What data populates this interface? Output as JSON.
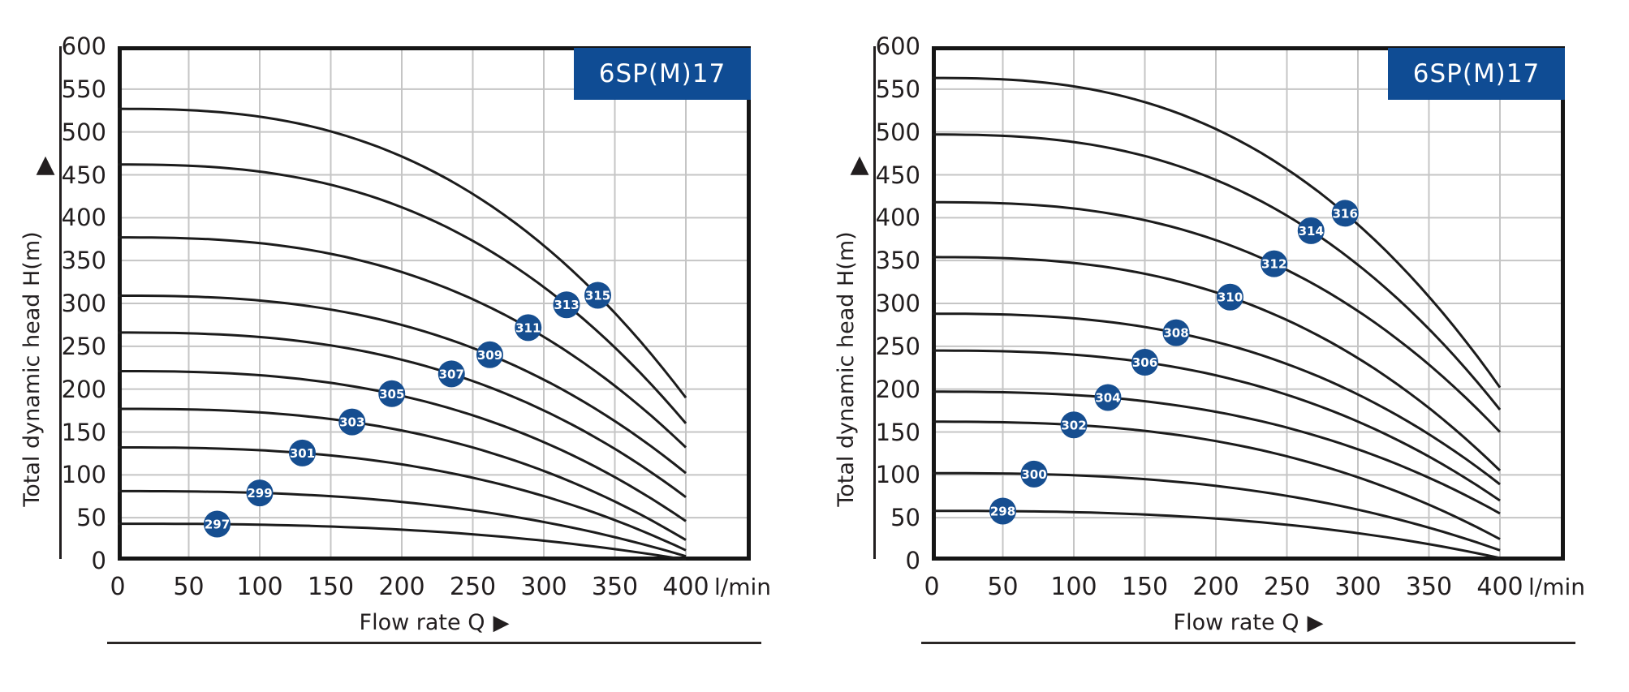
{
  "icons": {
    "up_arrow": "▲",
    "right_arrow": "▶"
  },
  "colors": {
    "background": "#ffffff",
    "bubble": "#164e90",
    "bubble_text": "#ffffff",
    "title_box": "#0f4c94",
    "title_text": "#ffffff",
    "curve": "#1c1c1c",
    "grid": "#c5c5c5",
    "border": "#151515",
    "text": "#221e1f"
  },
  "chart_data": [
    {
      "type": "line",
      "title": "6SP(M)17",
      "xlabel": "Flow rate Q",
      "ylabel": "Total dynamic head H(m)",
      "x_unit": "l/min",
      "xlim": [
        0,
        445
      ],
      "ylim": [
        0,
        600
      ],
      "x_ticks": [
        0,
        50,
        100,
        150,
        200,
        250,
        300,
        350,
        400
      ],
      "y_ticks": [
        0,
        50,
        100,
        150,
        200,
        250,
        300,
        350,
        400,
        450,
        500,
        550,
        600
      ],
      "grid": "on",
      "legend_position": "none",
      "curve_end_q": 400,
      "droop_exponent": 2.6,
      "series": [
        {
          "name": "297",
          "shutoff_head_m": 43,
          "head_at_400lmin_m": 1,
          "bubble_q_lmin": 70
        },
        {
          "name": "299",
          "shutoff_head_m": 81,
          "head_at_400lmin_m": 5,
          "bubble_q_lmin": 100
        },
        {
          "name": "301",
          "shutoff_head_m": 132,
          "head_at_400lmin_m": 12,
          "bubble_q_lmin": 130
        },
        {
          "name": "303",
          "shutoff_head_m": 177,
          "head_at_400lmin_m": 24,
          "bubble_q_lmin": 165
        },
        {
          "name": "305",
          "shutoff_head_m": 221,
          "head_at_400lmin_m": 46,
          "bubble_q_lmin": 193
        },
        {
          "name": "307",
          "shutoff_head_m": 266,
          "head_at_400lmin_m": 74,
          "bubble_q_lmin": 235
        },
        {
          "name": "309",
          "shutoff_head_m": 309,
          "head_at_400lmin_m": 102,
          "bubble_q_lmin": 262
        },
        {
          "name": "311",
          "shutoff_head_m": 377,
          "head_at_400lmin_m": 132,
          "bubble_q_lmin": 289
        },
        {
          "name": "313",
          "shutoff_head_m": 462,
          "head_at_400lmin_m": 160,
          "bubble_q_lmin": 316
        },
        {
          "name": "315",
          "shutoff_head_m": 527,
          "head_at_400lmin_m": 190,
          "bubble_q_lmin": 338
        }
      ]
    },
    {
      "type": "line",
      "title": "6SP(M)17",
      "xlabel": "Flow rate Q",
      "ylabel": "Total dynamic head H(m)",
      "x_unit": "l/min",
      "xlim": [
        0,
        445
      ],
      "ylim": [
        0,
        600
      ],
      "x_ticks": [
        0,
        50,
        100,
        150,
        200,
        250,
        300,
        350,
        400
      ],
      "y_ticks": [
        0,
        50,
        100,
        150,
        200,
        250,
        300,
        350,
        400,
        450,
        500,
        550,
        600
      ],
      "grid": "on",
      "legend_position": "none",
      "curve_end_q": 400,
      "droop_exponent": 2.6,
      "series": [
        {
          "name": "298",
          "shutoff_head_m": 58,
          "head_at_400lmin_m": 3,
          "bubble_q_lmin": 50
        },
        {
          "name": "300",
          "shutoff_head_m": 102,
          "head_at_400lmin_m": 12,
          "bubble_q_lmin": 72
        },
        {
          "name": "302",
          "shutoff_head_m": 162,
          "head_at_400lmin_m": 25,
          "bubble_q_lmin": 100
        },
        {
          "name": "304",
          "shutoff_head_m": 197,
          "head_at_400lmin_m": 55,
          "bubble_q_lmin": 124
        },
        {
          "name": "306",
          "shutoff_head_m": 245,
          "head_at_400lmin_m": 70,
          "bubble_q_lmin": 150
        },
        {
          "name": "308",
          "shutoff_head_m": 288,
          "head_at_400lmin_m": 89,
          "bubble_q_lmin": 172
        },
        {
          "name": "310",
          "shutoff_head_m": 354,
          "head_at_400lmin_m": 105,
          "bubble_q_lmin": 210
        },
        {
          "name": "312",
          "shutoff_head_m": 418,
          "head_at_400lmin_m": 150,
          "bubble_q_lmin": 241
        },
        {
          "name": "314",
          "shutoff_head_m": 497,
          "head_at_400lmin_m": 176,
          "bubble_q_lmin": 267
        },
        {
          "name": "316",
          "shutoff_head_m": 563,
          "head_at_400lmin_m": 202,
          "bubble_q_lmin": 291
        }
      ]
    }
  ]
}
